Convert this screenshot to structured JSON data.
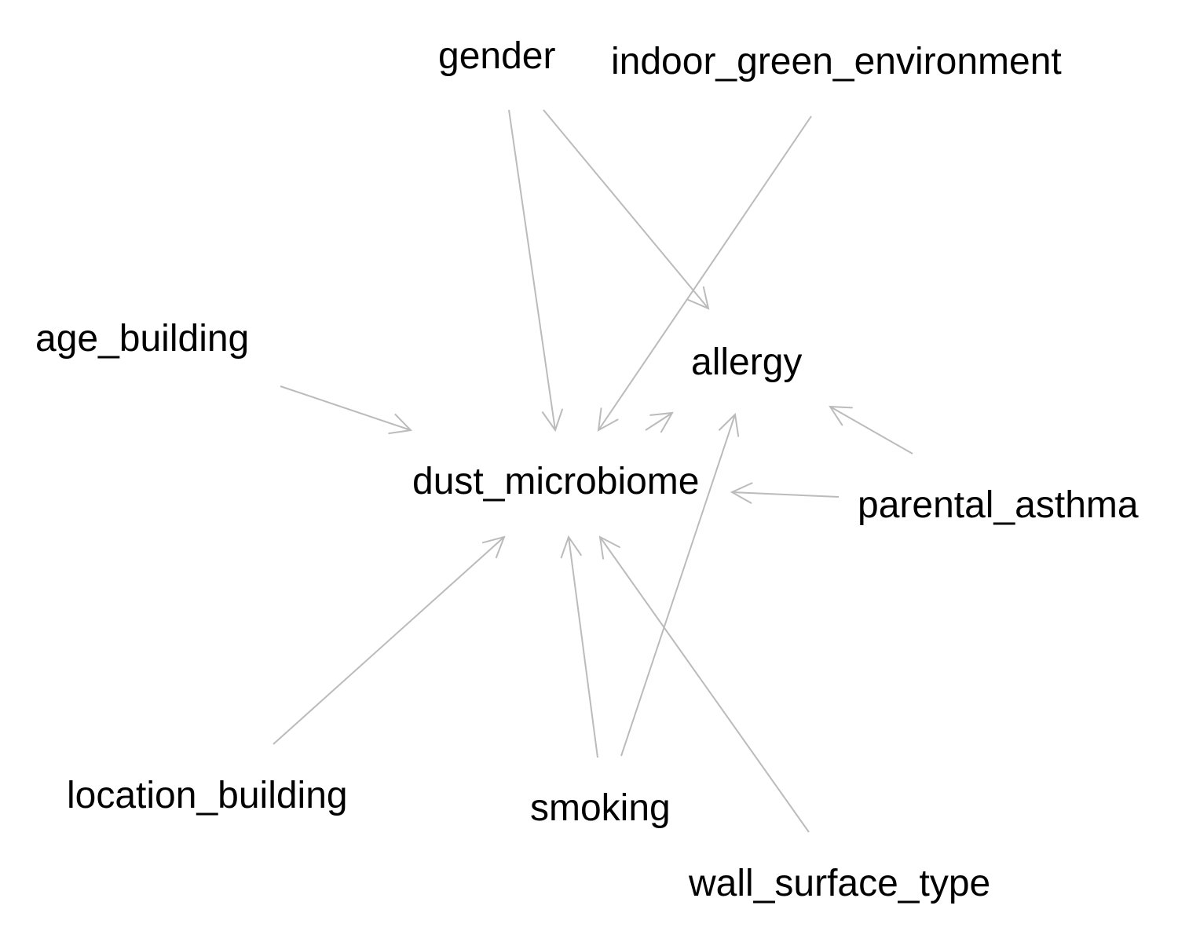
{
  "nodes": [
    {
      "id": "gender",
      "label": "gender"
    },
    {
      "id": "indoor_green_environment",
      "label": "indoor_green_environment"
    },
    {
      "id": "age_building",
      "label": "age_building"
    },
    {
      "id": "allergy",
      "label": "allergy"
    },
    {
      "id": "dust_microbiome",
      "label": "dust_microbiome"
    },
    {
      "id": "parental_asthma",
      "label": "parental_asthma"
    },
    {
      "id": "location_building",
      "label": "location_building"
    },
    {
      "id": "smoking",
      "label": "smoking"
    },
    {
      "id": "wall_surface_type",
      "label": "wall_surface_type"
    }
  ],
  "edges": [
    {
      "from": "gender",
      "to": "dust_microbiome"
    },
    {
      "from": "gender",
      "to": "allergy"
    },
    {
      "from": "indoor_green_environment",
      "to": "dust_microbiome"
    },
    {
      "from": "age_building",
      "to": "dust_microbiome"
    },
    {
      "from": "dust_microbiome",
      "to": "allergy"
    },
    {
      "from": "parental_asthma",
      "to": "allergy"
    },
    {
      "from": "parental_asthma",
      "to": "dust_microbiome"
    },
    {
      "from": "location_building",
      "to": "dust_microbiome"
    },
    {
      "from": "smoking",
      "to": "dust_microbiome"
    },
    {
      "from": "smoking",
      "to": "allergy"
    },
    {
      "from": "wall_surface_type",
      "to": "dust_microbiome"
    }
  ],
  "colors": {
    "edge": "#bbbbbb",
    "text": "#000000",
    "background": "#ffffff"
  }
}
